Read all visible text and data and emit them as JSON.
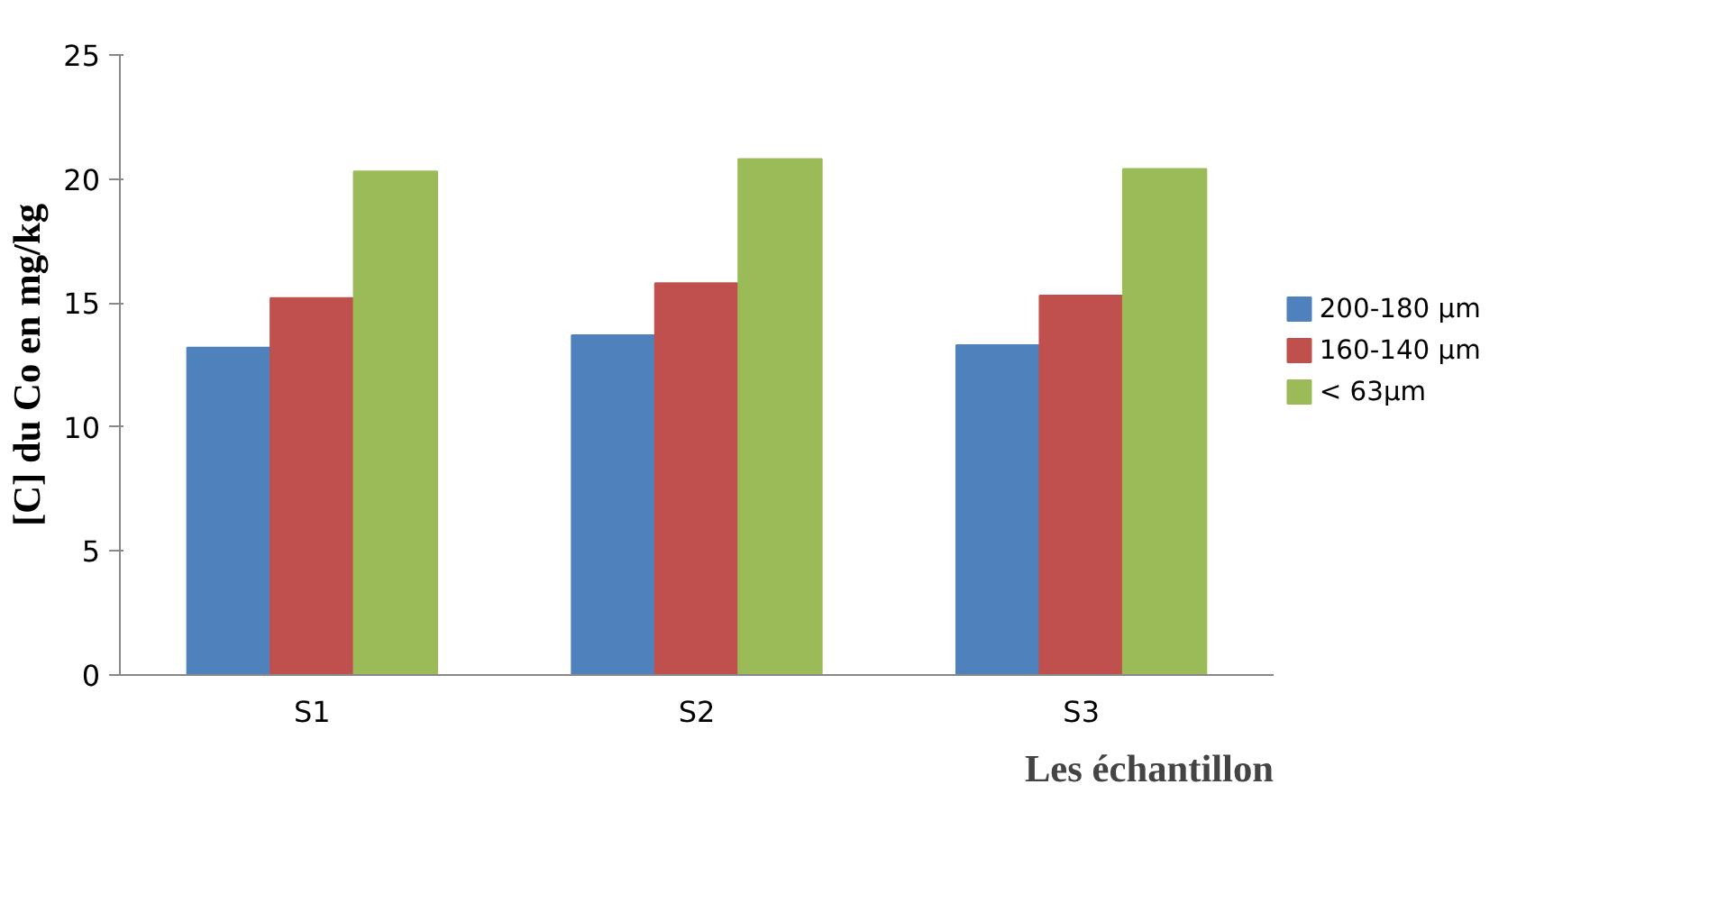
{
  "chart_data": {
    "type": "bar",
    "xlabel": "Les échantillon",
    "ylabel": "[C] du Co en mg/kg",
    "categories": [
      "S1",
      "S2",
      "S3"
    ],
    "series": [
      {
        "name": "200-180 µm",
        "color": "#4f81bd",
        "values": [
          13.2,
          13.7,
          13.3
        ]
      },
      {
        "name": "160-140 µm",
        "color": "#c0504d",
        "values": [
          15.2,
          15.8,
          15.3
        ]
      },
      {
        "name": "< 63µm",
        "color": "#9bbb59",
        "values": [
          20.3,
          20.8,
          20.4
        ]
      }
    ],
    "ylim": [
      0,
      25
    ],
    "yticks": [
      0,
      5,
      10,
      15,
      20,
      25
    ],
    "grid": false,
    "legend": "right"
  }
}
